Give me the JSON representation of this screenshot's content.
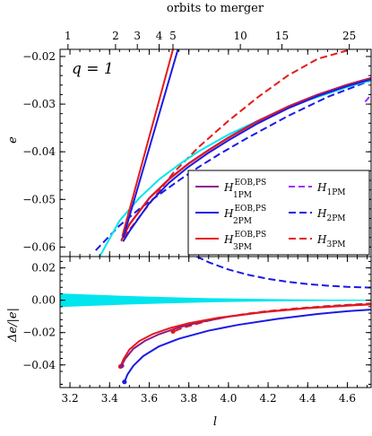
{
  "chart_data": {
    "type": "line",
    "top_axis": {
      "label": "orbits to merger",
      "tick_labels": [
        "1",
        "2",
        "3",
        "4",
        "5",
        "10",
        "15",
        "25"
      ],
      "tick_positions_l": [
        3.19,
        3.43,
        3.54,
        3.65,
        3.72,
        4.06,
        4.27,
        4.61
      ]
    },
    "annotation": "q = 1",
    "xlabel": "l",
    "xlim": [
      3.15,
      4.72
    ],
    "x_ticks": [
      3.2,
      3.4,
      3.6,
      3.8,
      4.0,
      4.2,
      4.4,
      4.6
    ],
    "x_tick_labels": [
      "3.2",
      "3.4",
      "3.6",
      "3.8",
      "4.0",
      "4.2",
      "4.4",
      "4.6"
    ],
    "panels": [
      {
        "id": "top",
        "ylabel": "e",
        "ylim": [
          -0.062,
          -0.0185
        ],
        "y_ticks": [
          -0.06,
          -0.05,
          -0.04,
          -0.03,
          -0.02
        ],
        "y_tick_labels": [
          "−0.06",
          "−0.05",
          "−0.04",
          "−0.03",
          "−0.02"
        ],
        "series": [
          {
            "name": "H1PM",
            "color": "#9b30ff",
            "dash": "7,4",
            "x": [
              4.69,
              4.705,
              4.72
            ],
            "y": [
              -0.0295,
              -0.0288,
              -0.0278
            ]
          },
          {
            "name": "H2PM",
            "color": "#1a1ae6",
            "dash": "8,4",
            "x": [
              3.33,
              3.45,
              3.55,
              3.65,
              3.75,
              3.85,
              3.95,
              4.1,
              4.3,
              4.5,
              4.72
            ],
            "y": [
              -0.0607,
              -0.0555,
              -0.052,
              -0.049,
              -0.046,
              -0.0432,
              -0.0406,
              -0.037,
              -0.0325,
              -0.0285,
              -0.025
            ]
          },
          {
            "name": "H3PM",
            "color": "#e61a1a",
            "dash": "8,4",
            "x": [
              3.47,
              3.6,
              3.72,
              3.85,
              4.0,
              4.15,
              4.3,
              4.45,
              4.62
            ],
            "y": [
              -0.058,
              -0.051,
              -0.0445,
              -0.039,
              -0.0335,
              -0.0285,
              -0.024,
              -0.0205,
              -0.0185
            ]
          },
          {
            "name": "cyan",
            "color": "#00e5ee",
            "dash": "",
            "x": [
              3.35,
              3.45,
              3.55,
              3.65,
              3.75,
              3.85,
              4.0,
              4.2,
              4.4,
              4.6,
              4.72
            ],
            "y": [
              -0.062,
              -0.0545,
              -0.0497,
              -0.0458,
              -0.0427,
              -0.0399,
              -0.0364,
              -0.0325,
              -0.0292,
              -0.0264,
              -0.025
            ]
          },
          {
            "name": "H1PM_EOB_PS",
            "color": "#8b1a8b",
            "dash": "",
            "x": [
              3.46,
              3.5,
              3.6,
              3.7,
              3.8,
              3.9,
              4.0,
              4.15,
              4.3,
              4.45,
              4.6,
              4.72
            ],
            "y": [
              -0.0585,
              -0.0552,
              -0.0497,
              -0.0457,
              -0.0424,
              -0.0396,
              -0.037,
              -0.0335,
              -0.0305,
              -0.028,
              -0.0259,
              -0.0245
            ]
          },
          {
            "name": "H3PM_EOB_PS",
            "color": "#e61a1a",
            "dash": "",
            "x": [
              3.46,
              3.5,
              3.6,
              3.7,
              3.8,
              3.9,
              4.0,
              4.15,
              4.3,
              4.45,
              4.6,
              4.72
            ],
            "y": [
              -0.0586,
              -0.0553,
              -0.0498,
              -0.0458,
              -0.0425,
              -0.0397,
              -0.0371,
              -0.0336,
              -0.0306,
              -0.0281,
              -0.026,
              -0.0246
            ]
          },
          {
            "name": "H2PM_EOB_PS",
            "color": "#1a1ae6",
            "dash": "",
            "x": [
              3.47,
              3.5,
              3.6,
              3.7,
              3.8,
              3.9,
              4.0,
              4.15,
              4.3,
              4.45,
              4.6,
              4.72
            ],
            "y": [
              -0.0587,
              -0.0567,
              -0.0508,
              -0.0465,
              -0.0431,
              -0.0402,
              -0.0376,
              -0.034,
              -0.0309,
              -0.0283,
              -0.0262,
              -0.0248
            ]
          },
          {
            "name": "steep_red",
            "color": "#e61a1a",
            "dash": "",
            "x": [
              3.465,
              3.72
            ],
            "y": [
              -0.0576,
              -0.0185
            ]
          },
          {
            "name": "steep_blue",
            "color": "#1a1ae6",
            "dash": "",
            "x": [
              3.47,
              3.745
            ],
            "y": [
              -0.0579,
              -0.0185
            ]
          }
        ]
      },
      {
        "id": "bottom",
        "ylabel": "Δe/|e|",
        "ylim": [
          -0.054,
          0.027
        ],
        "y_ticks": [
          -0.04,
          -0.02,
          0.0,
          0.02
        ],
        "y_tick_labels": [
          "−0.04",
          "−0.02",
          "0.00",
          "0.02"
        ],
        "band": {
          "color": "#00e5ee",
          "x": [
            3.15,
            3.3,
            3.5,
            3.7,
            3.9,
            4.1,
            4.3,
            4.5,
            4.72
          ],
          "half_width": [
            0.0042,
            0.0035,
            0.0026,
            0.0019,
            0.0013,
            0.0009,
            0.0006,
            0.0004,
            0.0003
          ]
        },
        "series": [
          {
            "name": "H2PM",
            "color": "#1a1ae6",
            "dash": "8,4",
            "x": [
              3.84,
              3.9,
              4.0,
              4.1,
              4.2,
              4.3,
              4.4,
              4.5,
              4.6,
              4.72
            ],
            "y": [
              0.027,
              0.0235,
              0.019,
              0.0157,
              0.0132,
              0.0114,
              0.01,
              0.009,
              0.0083,
              0.0078
            ]
          },
          {
            "name": "H3PM",
            "color": "#e61a1a",
            "dash": "8,4",
            "x": [
              3.73,
              3.76,
              3.8,
              3.9,
              4.0,
              4.1,
              4.2,
              4.35,
              4.5,
              4.72
            ],
            "y": [
              -0.019,
              -0.0175,
              -0.016,
              -0.0126,
              -0.0101,
              -0.0082,
              -0.0067,
              -0.005,
              -0.0036,
              -0.002
            ]
          },
          {
            "name": "H1PM_EOB_PS",
            "color": "#8b1a8b",
            "dash": "",
            "x": [
              3.46,
              3.48,
              3.52,
              3.58,
              3.65,
              3.75,
              3.85,
              4.0,
              4.2,
              4.4,
              4.6,
              4.72
            ],
            "y": [
              -0.0405,
              -0.036,
              -0.03,
              -0.025,
              -0.021,
              -0.0168,
              -0.0137,
              -0.0102,
              -0.007,
              -0.0048,
              -0.0032,
              -0.0025
            ]
          },
          {
            "name": "H3PM_EOB_PS",
            "color": "#e61a1a",
            "dash": "",
            "x": [
              3.455,
              3.47,
              3.5,
              3.55,
              3.62,
              3.7,
              3.8,
              3.95,
              4.15,
              4.4,
              4.6,
              4.72
            ],
            "y": [
              -0.041,
              -0.0365,
              -0.0305,
              -0.0252,
              -0.0208,
              -0.0174,
              -0.0142,
              -0.0108,
              -0.0077,
              -0.0049,
              -0.0034,
              -0.0026
            ]
          },
          {
            "name": "H2PM_EOB_PS",
            "color": "#1a1ae6",
            "dash": "",
            "x": [
              3.475,
              3.49,
              3.52,
              3.57,
              3.65,
              3.75,
              3.9,
              4.05,
              4.25,
              4.45,
              4.6,
              4.72
            ],
            "y": [
              -0.0505,
              -0.046,
              -0.0405,
              -0.0345,
              -0.0285,
              -0.0238,
              -0.0188,
              -0.0152,
              -0.0115,
              -0.0085,
              -0.0068,
              -0.0058
            ]
          }
        ],
        "markers": [
          {
            "color": "#e61a1a",
            "x": 3.455,
            "y": -0.041
          },
          {
            "color": "#8b1a8b",
            "x": 3.462,
            "y": -0.0405
          },
          {
            "color": "#1a1ae6",
            "x": 3.475,
            "y": -0.0505
          },
          {
            "color": "#e61a1a",
            "x": 3.72,
            "y": -0.0193
          }
        ]
      }
    ],
    "legend": {
      "placement": "lower-right of top panel",
      "entries": [
        {
          "label": "H",
          "sub": "1PM",
          "sup": "EOB,PS",
          "color": "#8b1a8b",
          "dash": ""
        },
        {
          "label": "H",
          "sub": "1PM",
          "sup": "",
          "color": "#9b30ff",
          "dash": "7,4"
        },
        {
          "label": "H",
          "sub": "2PM",
          "sup": "EOB,PS",
          "color": "#1a1ae6",
          "dash": ""
        },
        {
          "label": "H",
          "sub": "2PM",
          "sup": "",
          "color": "#1a1ae6",
          "dash": "8,4"
        },
        {
          "label": "H",
          "sub": "3PM",
          "sup": "EOB,PS",
          "color": "#e61a1a",
          "dash": ""
        },
        {
          "label": "H",
          "sub": "3PM",
          "sup": "",
          "color": "#e61a1a",
          "dash": "8,4"
        }
      ]
    }
  }
}
